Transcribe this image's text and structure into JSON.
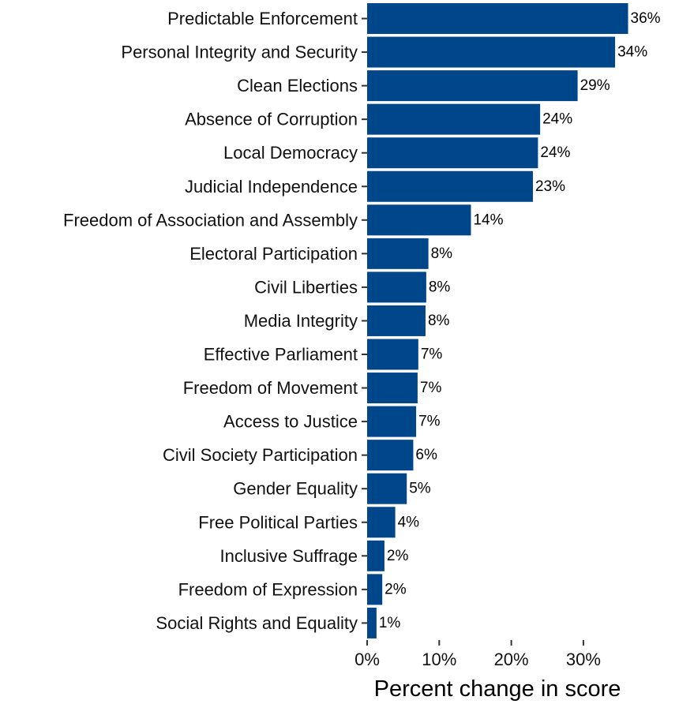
{
  "chart_data": {
    "type": "bar",
    "orientation": "horizontal",
    "categories": [
      "Predictable Enforcement",
      "Personal Integrity and Security",
      "Clean Elections",
      "Absence of Corruption",
      "Local Democracy",
      "Judicial Independence",
      "Freedom of Association and Assembly",
      "Electoral Participation",
      "Civil Liberties",
      "Media Integrity",
      "Effective Parliament",
      "Freedom of Movement",
      "Access to Justice",
      "Civil Society Participation",
      "Gender Equality",
      "Free Political Parties",
      "Inclusive Suffrage",
      "Freedom of Expression",
      "Social Rights and Equality"
    ],
    "values": [
      36.2,
      34.4,
      29.2,
      24.0,
      23.7,
      23.0,
      14.4,
      8.5,
      8.2,
      8.1,
      7.1,
      7.0,
      6.8,
      6.4,
      5.5,
      3.9,
      2.4,
      2.1,
      1.3
    ],
    "data_labels": [
      "36%",
      "34%",
      "29%",
      "24%",
      "24%",
      "23%",
      "14%",
      "8%",
      "8%",
      "8%",
      "7%",
      "7%",
      "7%",
      "6%",
      "5%",
      "4%",
      "2%",
      "2%",
      "1%"
    ],
    "xlabel": "Percent change in score",
    "ylabel": "",
    "xlim": [
      0,
      40
    ],
    "xticks": [
      0,
      10,
      20,
      30
    ],
    "xtick_labels": [
      "0%",
      "10%",
      "20%",
      "30%"
    ],
    "grid": false,
    "bar_color": "#00468B"
  }
}
